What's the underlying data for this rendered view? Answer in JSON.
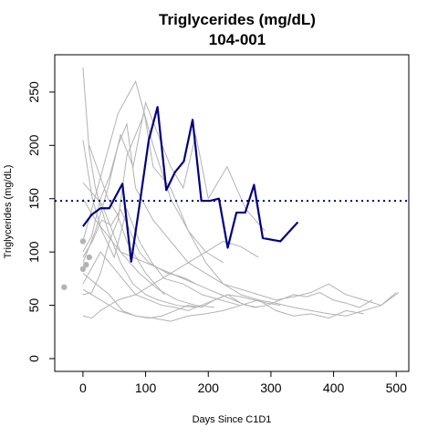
{
  "chart_data": {
    "type": "line",
    "title": "Triglycerides (mg/dL)",
    "subtitle": "104-001",
    "xlabel": "Days Since C1D1",
    "ylabel": "Triglycerides (mg/dL)",
    "xlim": [
      -45,
      520
    ],
    "ylim": [
      -12,
      285
    ],
    "x_ticks": [
      0,
      100,
      200,
      300,
      400,
      500
    ],
    "y_ticks": [
      0,
      50,
      100,
      150,
      200,
      250
    ],
    "grid": false,
    "reference_line": {
      "y": 148,
      "style": "dotted",
      "color": "#000080"
    },
    "colors": {
      "highlight": "#000080",
      "background_series": "#b3b3b3"
    },
    "highlight_series": {
      "name": "104-001",
      "x": [
        0,
        14,
        28,
        42,
        63,
        77,
        91,
        105,
        119,
        133,
        147,
        161,
        175,
        189,
        203,
        217,
        231,
        245,
        259,
        273,
        287,
        315,
        343
      ],
      "y": [
        124,
        135,
        141,
        141,
        164,
        91,
        147,
        205,
        236,
        158,
        175,
        185,
        224,
        148,
        148,
        150,
        104,
        137,
        137,
        163,
        113,
        110,
        128
      ]
    },
    "background_series": [
      {
        "x": [
          0,
          10,
          20,
          40,
          60,
          80,
          100,
          120,
          150,
          180
        ],
        "y": [
          273,
          195,
          160,
          120,
          90,
          70,
          60,
          55,
          50,
          48
        ]
      },
      {
        "x": [
          0,
          15,
          30,
          50,
          70,
          90,
          110,
          130,
          160,
          190,
          220,
          250
        ],
        "y": [
          205,
          150,
          120,
          95,
          140,
          110,
          90,
          75,
          70,
          60,
          55,
          50
        ]
      },
      {
        "x": [
          0,
          14,
          28,
          42,
          56,
          70,
          84,
          98,
          112,
          140,
          168,
          196,
          224,
          252,
          280,
          308,
          336,
          364,
          392,
          420,
          448,
          476,
          504
        ],
        "y": [
          60,
          62,
          80,
          110,
          130,
          190,
          210,
          230,
          180,
          160,
          120,
          90,
          70,
          65,
          60,
          55,
          58,
          62,
          70,
          60,
          55,
          50,
          62
        ]
      },
      {
        "x": [
          0,
          20,
          40,
          60,
          80,
          100,
          120,
          140,
          160,
          180,
          200,
          230,
          260,
          290
        ],
        "y": [
          90,
          120,
          160,
          210,
          180,
          240,
          210,
          180,
          160,
          210,
          150,
          180,
          140,
          120
        ]
      },
      {
        "x": [
          0,
          14,
          28,
          42,
          56,
          70,
          84,
          112,
          140,
          168,
          196,
          224,
          252,
          280,
          308,
          336,
          364,
          392,
          420,
          448
        ],
        "y": [
          100,
          115,
          150,
          170,
          200,
          220,
          160,
          130,
          110,
          90,
          80,
          70,
          60,
          55,
          45,
          40,
          42,
          38,
          45,
          42
        ]
      },
      {
        "x": [
          0,
          21,
          42,
          63,
          84,
          105,
          126,
          147,
          168,
          189,
          210,
          231,
          252,
          273,
          294,
          315,
          336,
          357,
          378,
          399,
          420,
          441,
          462
        ],
        "y": [
          80,
          70,
          60,
          45,
          40,
          38,
          40,
          45,
          50,
          48,
          55,
          60,
          52,
          48,
          50,
          55,
          60,
          58,
          62,
          55,
          52,
          48,
          55
        ]
      },
      {
        "x": [
          0,
          14,
          28,
          42,
          56,
          84,
          112,
          140,
          168,
          196,
          224,
          252,
          280
        ],
        "y": [
          40,
          38,
          45,
          50,
          55,
          60,
          70,
          80,
          90,
          100,
          110,
          105,
          95
        ]
      },
      {
        "x": [
          0,
          14,
          28,
          56,
          84,
          112,
          140,
          168,
          196,
          224
        ],
        "y": [
          110,
          140,
          170,
          230,
          260,
          200,
          150,
          120,
          100,
          90
        ]
      },
      {
        "x": [
          0,
          30,
          60,
          90,
          120,
          150,
          180,
          210
        ],
        "y": [
          165,
          145,
          100,
          80,
          65,
          55,
          50,
          48
        ]
      },
      {
        "x": [
          0,
          14,
          28,
          42,
          63,
          84,
          105,
          126,
          147,
          168,
          189,
          210,
          231,
          252,
          273,
          294,
          315
        ],
        "y": [
          70,
          85,
          100,
          90,
          75,
          60,
          55,
          50,
          48,
          45,
          50,
          55,
          60,
          58,
          55,
          52,
          50
        ]
      },
      {
        "x": [
          0,
          20,
          40,
          60,
          80,
          100,
          120,
          140,
          160,
          180,
          200,
          220,
          240,
          260,
          280
        ],
        "y": [
          150,
          130,
          115,
          100,
          95,
          90,
          85,
          80,
          75,
          70,
          65,
          60,
          55,
          50,
          48
        ]
      },
      {
        "x": [
          0,
          15,
          30,
          45,
          60,
          75,
          90,
          105,
          120,
          135,
          150,
          165,
          180
        ],
        "y": [
          95,
          110,
          130,
          125,
          140,
          120,
          100,
          90,
          85,
          80,
          78,
          75,
          70
        ]
      },
      {
        "x": [
          10,
          25,
          40,
          55,
          70,
          85,
          100,
          115,
          130
        ],
        "y": [
          200,
          175,
          150,
          135,
          110,
          95,
          80,
          70,
          60
        ]
      },
      {
        "x": [
          0,
          28,
          56,
          84,
          112,
          140,
          168,
          196,
          224,
          252,
          280,
          308,
          336,
          364,
          392,
          420,
          448,
          476,
          500
        ],
        "y": [
          65,
          55,
          45,
          40,
          38,
          35,
          40,
          42,
          45,
          50,
          55,
          52,
          48,
          45,
          42,
          40,
          45,
          50,
          62
        ]
      }
    ],
    "background_points": [
      {
        "x": -30,
        "y": 67
      },
      {
        "x": 0,
        "y": 110
      },
      {
        "x": 0,
        "y": 84
      },
      {
        "x": 5,
        "y": 88
      },
      {
        "x": 10,
        "y": 95
      }
    ]
  }
}
